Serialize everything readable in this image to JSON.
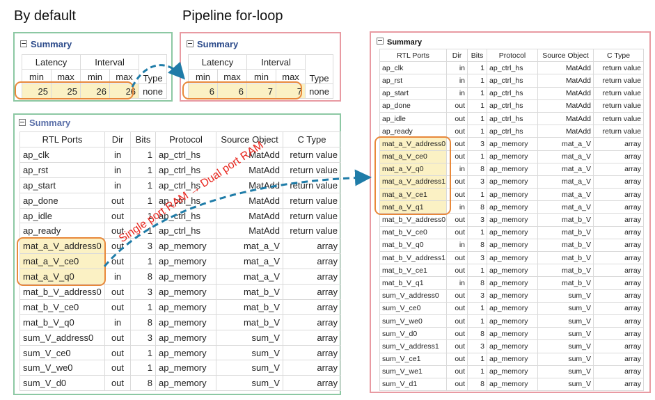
{
  "headings": {
    "by_default": "By default",
    "pipeline": "Pipeline for-loop"
  },
  "summary_label": "Summary",
  "latency_tables": {
    "group_headers": [
      "Latency",
      "Interval"
    ],
    "sub_headers": [
      "min",
      "max",
      "min",
      "max"
    ],
    "type_header": "Type",
    "by_default": {
      "values": [
        "25",
        "25",
        "26",
        "26"
      ],
      "type": "none"
    },
    "pipeline": {
      "values": [
        "6",
        "6",
        "7",
        "7"
      ],
      "type": "none"
    }
  },
  "ports_headers": [
    "RTL Ports",
    "Dir",
    "Bits",
    "Protocol",
    "Source Object",
    "C Type"
  ],
  "left_ports": [
    [
      "ap_clk",
      "in",
      "1",
      "ap_ctrl_hs",
      "MatAdd",
      "return value"
    ],
    [
      "ap_rst",
      "in",
      "1",
      "ap_ctrl_hs",
      "MatAdd",
      "return value"
    ],
    [
      "ap_start",
      "in",
      "1",
      "ap_ctrl_hs",
      "MatAdd",
      "return value"
    ],
    [
      "ap_done",
      "out",
      "1",
      "ap_ctrl_hs",
      "MatAdd",
      "return value"
    ],
    [
      "ap_idle",
      "out",
      "1",
      "ap_ctrl_hs",
      "MatAdd",
      "return value"
    ],
    [
      "ap_ready",
      "out",
      "1",
      "ap_ctrl_hs",
      "MatAdd",
      "return value"
    ],
    [
      "mat_a_V_address0",
      "out",
      "3",
      "ap_memory",
      "mat_a_V",
      "array"
    ],
    [
      "mat_a_V_ce0",
      "out",
      "1",
      "ap_memory",
      "mat_a_V",
      "array"
    ],
    [
      "mat_a_V_q0",
      "in",
      "8",
      "ap_memory",
      "mat_a_V",
      "array"
    ],
    [
      "mat_b_V_address0",
      "out",
      "3",
      "ap_memory",
      "mat_b_V",
      "array"
    ],
    [
      "mat_b_V_ce0",
      "out",
      "1",
      "ap_memory",
      "mat_b_V",
      "array"
    ],
    [
      "mat_b_V_q0",
      "in",
      "8",
      "ap_memory",
      "mat_b_V",
      "array"
    ],
    [
      "sum_V_address0",
      "out",
      "3",
      "ap_memory",
      "sum_V",
      "array"
    ],
    [
      "sum_V_ce0",
      "out",
      "1",
      "ap_memory",
      "sum_V",
      "array"
    ],
    [
      "sum_V_we0",
      "out",
      "1",
      "ap_memory",
      "sum_V",
      "array"
    ],
    [
      "sum_V_d0",
      "out",
      "8",
      "ap_memory",
      "sum_V",
      "array"
    ]
  ],
  "right_ports": [
    [
      "ap_clk",
      "in",
      "1",
      "ap_ctrl_hs",
      "MatAdd",
      "return value"
    ],
    [
      "ap_rst",
      "in",
      "1",
      "ap_ctrl_hs",
      "MatAdd",
      "return value"
    ],
    [
      "ap_start",
      "in",
      "1",
      "ap_ctrl_hs",
      "MatAdd",
      "return value"
    ],
    [
      "ap_done",
      "out",
      "1",
      "ap_ctrl_hs",
      "MatAdd",
      "return value"
    ],
    [
      "ap_idle",
      "out",
      "1",
      "ap_ctrl_hs",
      "MatAdd",
      "return value"
    ],
    [
      "ap_ready",
      "out",
      "1",
      "ap_ctrl_hs",
      "MatAdd",
      "return value"
    ],
    [
      "mat_a_V_address0",
      "out",
      "3",
      "ap_memory",
      "mat_a_V",
      "array"
    ],
    [
      "mat_a_V_ce0",
      "out",
      "1",
      "ap_memory",
      "mat_a_V",
      "array"
    ],
    [
      "mat_a_V_q0",
      "in",
      "8",
      "ap_memory",
      "mat_a_V",
      "array"
    ],
    [
      "mat_a_V_address1",
      "out",
      "3",
      "ap_memory",
      "mat_a_V",
      "array"
    ],
    [
      "mat_a_V_ce1",
      "out",
      "1",
      "ap_memory",
      "mat_a_V",
      "array"
    ],
    [
      "mat_a_V_q1",
      "in",
      "8",
      "ap_memory",
      "mat_a_V",
      "array"
    ],
    [
      "mat_b_V_address0",
      "out",
      "3",
      "ap_memory",
      "mat_b_V",
      "array"
    ],
    [
      "mat_b_V_ce0",
      "out",
      "1",
      "ap_memory",
      "mat_b_V",
      "array"
    ],
    [
      "mat_b_V_q0",
      "in",
      "8",
      "ap_memory",
      "mat_b_V",
      "array"
    ],
    [
      "mat_b_V_address1",
      "out",
      "3",
      "ap_memory",
      "mat_b_V",
      "array"
    ],
    [
      "mat_b_V_ce1",
      "out",
      "1",
      "ap_memory",
      "mat_b_V",
      "array"
    ],
    [
      "mat_b_V_q1",
      "in",
      "8",
      "ap_memory",
      "mat_b_V",
      "array"
    ],
    [
      "sum_V_address0",
      "out",
      "3",
      "ap_memory",
      "sum_V",
      "array"
    ],
    [
      "sum_V_ce0",
      "out",
      "1",
      "ap_memory",
      "sum_V",
      "array"
    ],
    [
      "sum_V_we0",
      "out",
      "1",
      "ap_memory",
      "sum_V",
      "array"
    ],
    [
      "sum_V_d0",
      "out",
      "8",
      "ap_memory",
      "sum_V",
      "array"
    ],
    [
      "sum_V_address1",
      "out",
      "3",
      "ap_memory",
      "sum_V",
      "array"
    ],
    [
      "sum_V_ce1",
      "out",
      "1",
      "ap_memory",
      "sum_V",
      "array"
    ],
    [
      "sum_V_we1",
      "out",
      "1",
      "ap_memory",
      "sum_V",
      "array"
    ],
    [
      "sum_V_d1",
      "out",
      "8",
      "ap_memory",
      "sum_V",
      "array"
    ]
  ],
  "annotation": "Single port RAM → Dual port RAM",
  "colors": {
    "highlight_fill": "#fbf1c4",
    "highlight_border": "#e8883a",
    "arrow": "#1f7ca8",
    "annotation": "#e8251d",
    "green_border": "#8cc8a3",
    "red_border": "#e89aa2"
  }
}
